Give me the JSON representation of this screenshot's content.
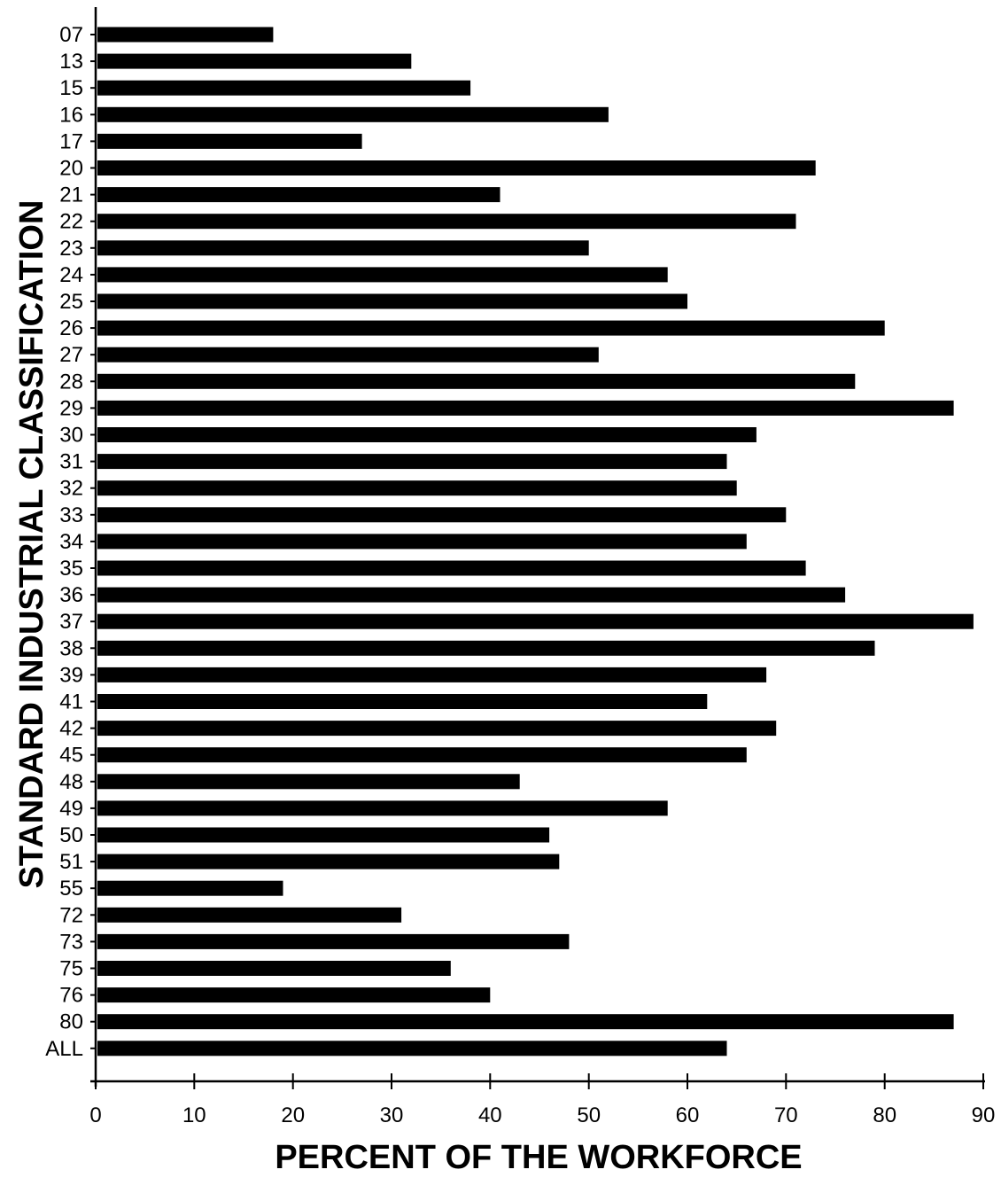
{
  "chart_data": {
    "type": "bar",
    "orientation": "horizontal",
    "categories": [
      "07",
      "13",
      "15",
      "16",
      "17",
      "20",
      "21",
      "22",
      "23",
      "24",
      "25",
      "26",
      "27",
      "28",
      "29",
      "30",
      "31",
      "32",
      "33",
      "34",
      "35",
      "36",
      "37",
      "38",
      "39",
      "41",
      "42",
      "45",
      "48",
      "49",
      "50",
      "51",
      "55",
      "72",
      "73",
      "75",
      "76",
      "80",
      "ALL"
    ],
    "values": [
      18,
      32,
      38,
      52,
      27,
      73,
      41,
      71,
      50,
      58,
      60,
      80,
      51,
      77,
      87,
      67,
      64,
      65,
      70,
      66,
      72,
      76,
      89,
      79,
      68,
      62,
      69,
      66,
      43,
      58,
      46,
      47,
      19,
      31,
      48,
      36,
      40,
      87,
      64
    ],
    "xlabel": "PERCENT OF THE WORKFORCE",
    "ylabel": "STANDARD INDUSTRIAL CLASSIFICATION",
    "xlim": [
      0,
      90
    ],
    "xticks": [
      "0",
      "10",
      "20",
      "30",
      "40",
      "50",
      "60",
      "70",
      "80",
      "90"
    ],
    "grid": false,
    "legend": "none",
    "bar_color": "#000000"
  }
}
